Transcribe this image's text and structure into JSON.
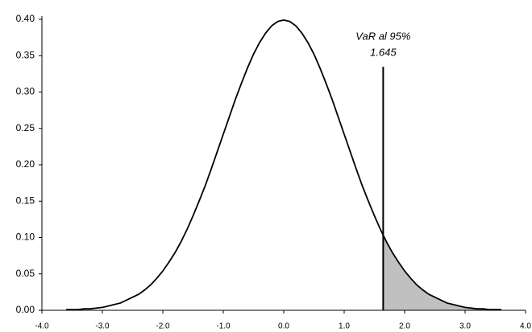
{
  "chart_data": {
    "type": "area",
    "x": [
      -3.6,
      -3.5,
      -3.4,
      -3.3,
      -3.2,
      -3.1,
      -3.0,
      -2.9,
      -2.8,
      -2.7,
      -2.6,
      -2.5,
      -2.4,
      -2.3,
      -2.2,
      -2.1,
      -2.0,
      -1.9,
      -1.8,
      -1.7,
      -1.6,
      -1.5,
      -1.4,
      -1.3,
      -1.2,
      -1.1,
      -1.0,
      -0.9,
      -0.8,
      -0.7,
      -0.6,
      -0.5,
      -0.4,
      -0.3,
      -0.2,
      -0.1,
      0.0,
      0.1,
      0.2,
      0.3,
      0.4,
      0.5,
      0.6,
      0.7,
      0.8,
      0.9,
      1.0,
      1.1,
      1.2,
      1.3,
      1.4,
      1.5,
      1.6,
      1.7,
      1.8,
      1.9,
      2.0,
      2.1,
      2.2,
      2.3,
      2.4,
      2.5,
      2.6,
      2.7,
      2.8,
      2.9,
      3.0,
      3.1,
      3.2,
      3.3,
      3.4,
      3.5,
      3.6
    ],
    "values": [
      0.001,
      0.001,
      0.001,
      0.002,
      0.002,
      0.003,
      0.004,
      0.006,
      0.008,
      0.01,
      0.014,
      0.018,
      0.022,
      0.028,
      0.035,
      0.044,
      0.054,
      0.066,
      0.079,
      0.094,
      0.111,
      0.13,
      0.15,
      0.171,
      0.194,
      0.218,
      0.242,
      0.266,
      0.29,
      0.312,
      0.333,
      0.352,
      0.368,
      0.381,
      0.391,
      0.397,
      0.399,
      0.397,
      0.391,
      0.381,
      0.368,
      0.352,
      0.333,
      0.312,
      0.29,
      0.266,
      0.242,
      0.218,
      0.194,
      0.171,
      0.15,
      0.13,
      0.111,
      0.094,
      0.079,
      0.066,
      0.054,
      0.044,
      0.035,
      0.028,
      0.022,
      0.018,
      0.014,
      0.01,
      0.008,
      0.006,
      0.004,
      0.003,
      0.002,
      0.002,
      0.001,
      0.001,
      0.001
    ],
    "color": "#000000",
    "shade_color": "#c0c0c0",
    "annotation": {
      "text": "VaR al 95%",
      "value": 1.645
    },
    "xlim": [
      -4,
      4
    ],
    "xticks": [
      {
        "value": -4,
        "label": "-4.0"
      },
      {
        "value": -3,
        "label": "-3.0"
      },
      {
        "value": -2,
        "label": "-2.0"
      },
      {
        "value": -1,
        "label": "-1.0"
      },
      {
        "value": 0,
        "label": "0.0"
      },
      {
        "value": 1,
        "label": "1.0"
      },
      {
        "value": 2,
        "label": "2.0"
      },
      {
        "value": 3,
        "label": "3.0"
      },
      {
        "value": 4,
        "label": "4.0"
      }
    ],
    "ylim": [
      0,
      0.4
    ],
    "yticks": [
      {
        "value": 0,
        "label": "0.00"
      },
      {
        "value": 0.05,
        "label": "0.05"
      },
      {
        "value": 0.1,
        "label": "0.10"
      },
      {
        "value": 0.15,
        "label": "0.15"
      },
      {
        "value": 0.2,
        "label": "0.20"
      },
      {
        "value": 0.25,
        "label": "0.25"
      },
      {
        "value": 0.3,
        "label": "0.30"
      },
      {
        "value": 0.35,
        "label": "0.35"
      },
      {
        "value": 0.4,
        "label": "0.40"
      }
    ],
    "grid": false
  }
}
